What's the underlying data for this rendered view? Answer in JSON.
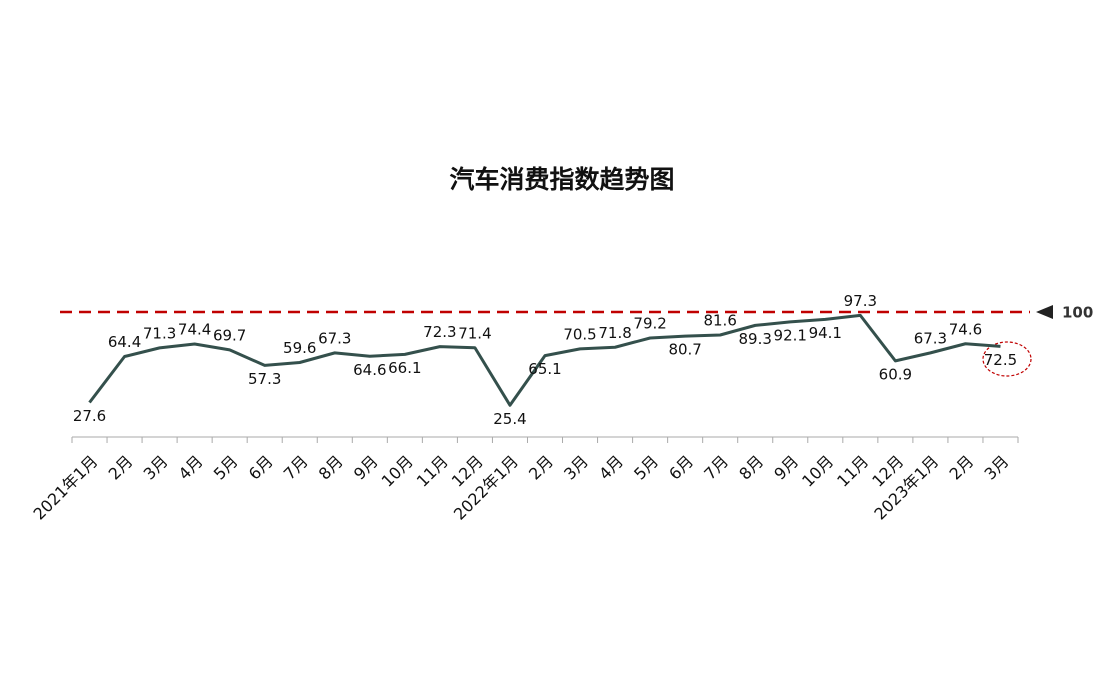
{
  "chart_data": {
    "type": "line",
    "title": "汽车消费指数趋势图",
    "categories": [
      "2021年1月",
      "2月",
      "3月",
      "4月",
      "5月",
      "6月",
      "7月",
      "8月",
      "9月",
      "10月",
      "11月",
      "12月",
      "2022年1月",
      "2月",
      "3月",
      "4月",
      "5月",
      "6月",
      "7月",
      "8月",
      "9月",
      "10月",
      "11月",
      "12月",
      "2023年1月",
      "2月",
      "3月"
    ],
    "series": [
      {
        "name": "汽车消费指数",
        "color": "#34504c",
        "values": [
          27.6,
          64.4,
          71.3,
          74.4,
          69.7,
          57.3,
          59.6,
          67.3,
          64.6,
          66.1,
          72.3,
          71.4,
          25.4,
          65.1,
          70.5,
          71.8,
          79.2,
          80.7,
          81.6,
          89.3,
          92.1,
          94.1,
          97.3,
          60.9,
          67.3,
          74.6,
          72.5
        ]
      }
    ],
    "ylim": [
      0,
      100
    ],
    "reference_line": 100,
    "reference_color": "#c00000"
  }
}
